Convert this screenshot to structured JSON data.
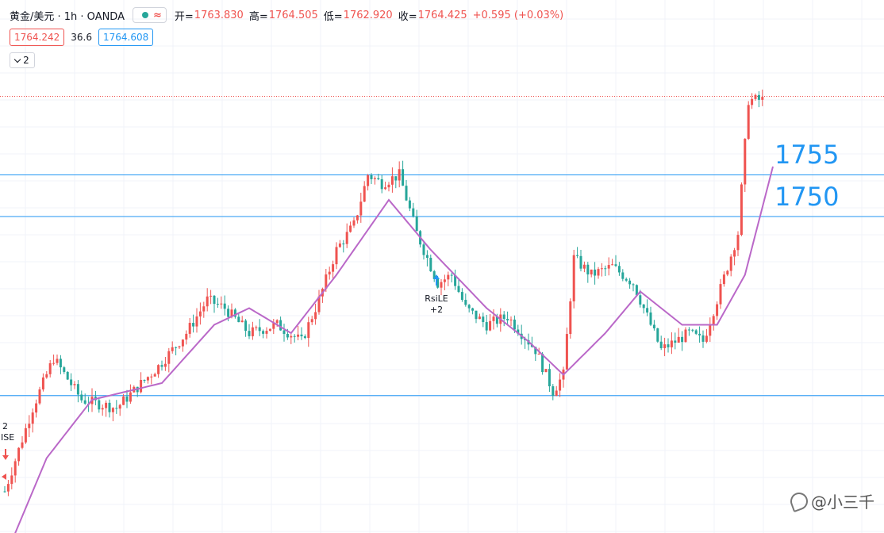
{
  "header": {
    "symbol": "黄金/美元 · 1h · OANDA",
    "wave_icon": "≈",
    "open_label": "开=",
    "open": "1763.830",
    "high_label": "高=",
    "high": "1764.505",
    "low_label": "低=",
    "low": "1762.920",
    "close_label": "收=",
    "close": "1764.425",
    "change": "+0.595 (+0.03%)"
  },
  "trade": {
    "sell": "1764.242",
    "spread": "36.6",
    "buy": "1764.608"
  },
  "indicator_toggle": "2",
  "levels": [
    "1755",
    "1750"
  ],
  "signals": [
    {
      "label": "RsiLE",
      "qty": "+2"
    },
    {
      "label": "2",
      "sub": "ISE"
    }
  ],
  "watermark": "@小三千",
  "colors": {
    "up": "#ef5350",
    "down": "#26a69a",
    "ma": "#ba68c8",
    "level": "#2196f3",
    "dotted": "#ef5350"
  },
  "chart_data": {
    "type": "candlestick",
    "title": "",
    "ylim": [
      1712,
      1768
    ],
    "horizontal_levels": [
      1755,
      1750,
      1728.5
    ],
    "current_price": 1764.425,
    "anchors": [
      [
        0,
        1717
      ],
      [
        8,
        1727
      ],
      [
        12,
        1731
      ],
      [
        14,
        1733
      ],
      [
        22,
        1728
      ],
      [
        32,
        1727
      ],
      [
        44,
        1732
      ],
      [
        52,
        1736
      ],
      [
        58,
        1740
      ],
      [
        63,
        1739
      ],
      [
        70,
        1736
      ],
      [
        78,
        1737
      ],
      [
        85,
        1735
      ],
      [
        90,
        1740
      ],
      [
        95,
        1746
      ],
      [
        100,
        1749
      ],
      [
        104,
        1755
      ],
      [
        108,
        1754
      ],
      [
        113,
        1755
      ],
      [
        118,
        1748
      ],
      [
        124,
        1742
      ],
      [
        128,
        1743
      ],
      [
        132,
        1739
      ],
      [
        138,
        1737
      ],
      [
        144,
        1738
      ],
      [
        152,
        1734
      ],
      [
        157,
        1729
      ],
      [
        160,
        1731
      ],
      [
        163,
        1745
      ],
      [
        168,
        1743
      ],
      [
        174,
        1744
      ],
      [
        180,
        1742
      ],
      [
        184,
        1738
      ],
      [
        188,
        1734
      ],
      [
        192,
        1735
      ],
      [
        196,
        1736
      ],
      [
        200,
        1735
      ],
      [
        204,
        1740
      ],
      [
        210,
        1748
      ],
      [
        213,
        1764
      ],
      [
        217,
        1764
      ]
    ],
    "ma_anchors": [
      [
        0,
        1709
      ],
      [
        12,
        1721
      ],
      [
        25,
        1728
      ],
      [
        45,
        1730
      ],
      [
        60,
        1737
      ],
      [
        70,
        1739
      ],
      [
        82,
        1736
      ],
      [
        95,
        1743
      ],
      [
        110,
        1752
      ],
      [
        122,
        1746
      ],
      [
        138,
        1739
      ],
      [
        150,
        1735
      ],
      [
        160,
        1731
      ],
      [
        172,
        1736
      ],
      [
        182,
        1741
      ],
      [
        194,
        1737
      ],
      [
        204,
        1737
      ],
      [
        212,
        1743
      ],
      [
        220,
        1756
      ]
    ]
  }
}
